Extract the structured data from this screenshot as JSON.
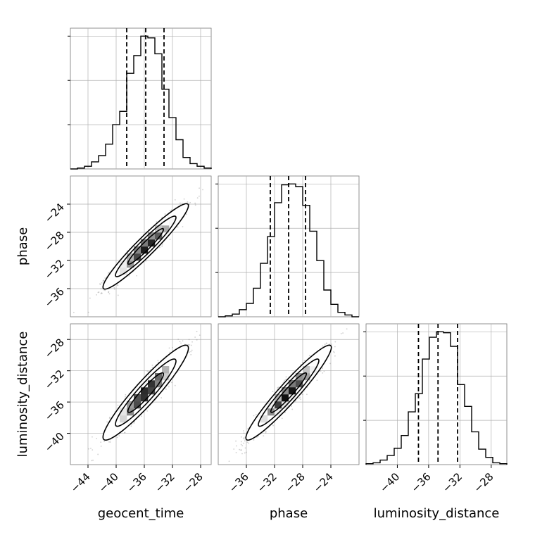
{
  "chart_data": {
    "type": "corner",
    "parameters": [
      {
        "name": "geocent_time",
        "axis_label": "geocent_time",
        "range": [
          -46.5,
          -26.5
        ],
        "ticks": [
          -44,
          -40,
          -36,
          -32,
          -28
        ],
        "quantiles": [
          -38.5,
          -35.8,
          -33.2
        ]
      },
      {
        "name": "phase",
        "axis_label": "phase",
        "range": [
          -40.0,
          -20.0
        ],
        "ticks": [
          -36,
          -32,
          -28,
          -24
        ],
        "quantiles": [
          -32.6,
          -30.0,
          -27.6
        ]
      },
      {
        "name": "luminosity_distance",
        "axis_label": "luminosity_distance",
        "range": [
          -44.0,
          -26.0
        ],
        "ticks": [
          -40,
          -36,
          -32,
          -28
        ],
        "quantiles": [
          -37.3,
          -34.8,
          -32.3
        ]
      }
    ],
    "histograms": [
      {
        "parameter": "geocent_time",
        "bin_edges": [
          -46.5,
          -45.5,
          -44.5,
          -43.5,
          -42.5,
          -41.5,
          -40.5,
          -39.5,
          -38.5,
          -37.5,
          -36.5,
          -35.5,
          -34.5,
          -33.5,
          -32.5,
          -31.5,
          -30.5,
          -29.5,
          -28.5,
          -27.5,
          -26.5
        ],
        "counts": [
          0,
          1,
          3,
          8,
          15,
          28,
          50,
          65,
          108,
          128,
          150,
          148,
          130,
          90,
          58,
          33,
          13,
          6,
          3,
          1
        ]
      },
      {
        "parameter": "phase",
        "bin_edges": [
          -40,
          -39,
          -38,
          -37,
          -36,
          -35,
          -34,
          -33,
          -32,
          -31,
          -30,
          -29,
          -28,
          -27,
          -26,
          -25,
          -24,
          -23,
          -22,
          -21,
          -20
        ],
        "counts": [
          0,
          1,
          3,
          8,
          15,
          32,
          60,
          90,
          128,
          148,
          149,
          146,
          125,
          96,
          63,
          30,
          14,
          5,
          2,
          0
        ]
      },
      {
        "parameter": "luminosity_distance",
        "bin_edges": [
          -44.0,
          -43.1,
          -42.2,
          -41.3,
          -40.4,
          -39.5,
          -38.6,
          -37.7,
          -36.8,
          -35.9,
          -35.0,
          -34.1,
          -33.2,
          -32.3,
          -31.4,
          -30.5,
          -29.6,
          -28.7,
          -27.8,
          -26.9,
          -26.0
        ],
        "counts": [
          1,
          2,
          5,
          10,
          18,
          32,
          58,
          78,
          116,
          140,
          146,
          145,
          130,
          88,
          64,
          36,
          17,
          8,
          2,
          1
        ]
      }
    ],
    "pairs": [
      {
        "x": "geocent_time",
        "y": "phase",
        "mean": [
          -35.8,
          -30.0
        ],
        "cov": [
          [
            6.4,
            6.1
          ],
          [
            6.1,
            6.4
          ]
        ]
      },
      {
        "x": "geocent_time",
        "y": "luminosity_distance",
        "mean": [
          -35.8,
          -34.8
        ],
        "cov": [
          [
            6.4,
            6.0
          ],
          [
            6.0,
            6.4
          ]
        ]
      },
      {
        "x": "phase",
        "y": "luminosity_distance",
        "mean": [
          -30.0,
          -34.8
        ],
        "cov": [
          [
            6.4,
            6.1
          ],
          [
            6.1,
            6.4
          ]
        ]
      }
    ],
    "grid": true,
    "colors": {
      "line": "#000000",
      "grid": "#b0b0b0",
      "samples": "#777777",
      "contour_fill": "#ffffff"
    }
  }
}
